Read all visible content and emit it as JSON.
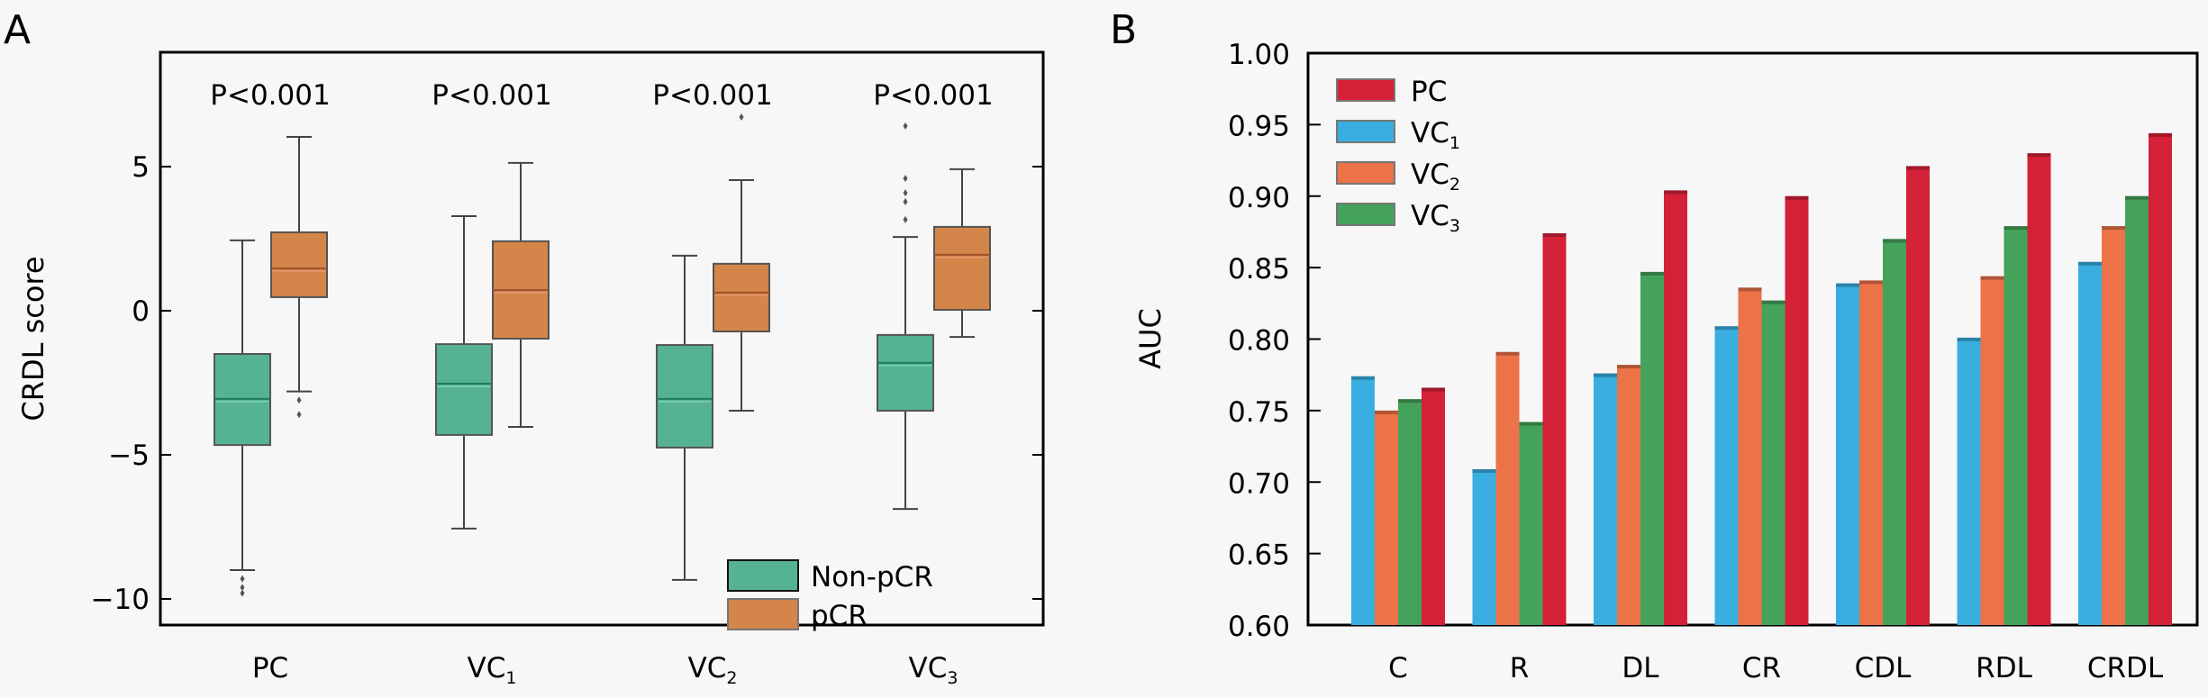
{
  "chart_data": [
    {
      "panel_label": "A",
      "type": "box",
      "title": "",
      "xlabel": "",
      "ylabel": "CRDL score",
      "ylim": [
        -11.0,
        9.0
      ],
      "yticks": [
        5,
        0,
        -5,
        -10
      ],
      "ytick_labels": [
        "5",
        "0",
        "−5",
        "−10"
      ],
      "categories": [
        {
          "base": "PC",
          "sub": ""
        },
        {
          "base": "VC",
          "sub": "1"
        },
        {
          "base": "VC",
          "sub": "2"
        },
        {
          "base": "VC",
          "sub": "3"
        }
      ],
      "p_values": [
        "P<0.001",
        "P<0.001",
        "P<0.001",
        "P<0.001"
      ],
      "legend": {
        "position": "lower-right",
        "entries": [
          "Non-pCR",
          "pCR"
        ]
      },
      "series": [
        {
          "name": "Non-pCR",
          "color": "#55b394",
          "boxes": [
            {
              "whisker_low": -9.0,
              "q1": -4.66,
              "median": -3.06,
              "q3": -1.5,
              "whisker_high": 2.44,
              "outliers": [
                -9.3,
                -9.6,
                -9.8
              ]
            },
            {
              "whisker_low": -7.56,
              "q1": -4.31,
              "median": -2.53,
              "q3": -1.16,
              "whisker_high": 3.28,
              "outliers": []
            },
            {
              "whisker_low": -9.34,
              "q1": -4.75,
              "median": -3.06,
              "q3": -1.19,
              "whisker_high": 1.91,
              "outliers": []
            },
            {
              "whisker_low": -6.88,
              "q1": -3.47,
              "median": -1.81,
              "q3": -0.84,
              "whisker_high": 2.56,
              "outliers": [
                3.16,
                3.78,
                4.09,
                4.59,
                6.41
              ]
            }
          ]
        },
        {
          "name": "pCR",
          "color": "#d4854a",
          "boxes": [
            {
              "whisker_low": -2.8,
              "q1": 0.47,
              "median": 1.47,
              "q3": 2.72,
              "whisker_high": 6.03,
              "outliers": [
                -3.1,
                -3.6
              ]
            },
            {
              "whisker_low": -4.03,
              "q1": -0.97,
              "median": 0.72,
              "q3": 2.41,
              "whisker_high": 5.13,
              "outliers": []
            },
            {
              "whisker_low": -3.47,
              "q1": -0.72,
              "median": 0.63,
              "q3": 1.63,
              "whisker_high": 4.53,
              "outliers": [
                6.72
              ]
            },
            {
              "whisker_low": -0.91,
              "q1": 0.03,
              "median": 1.94,
              "q3": 2.91,
              "whisker_high": 4.91,
              "outliers": []
            }
          ]
        }
      ]
    },
    {
      "panel_label": "B",
      "type": "bar",
      "title": "",
      "xlabel": "",
      "ylabel": "AUC",
      "ylim": [
        0.6,
        1.0
      ],
      "yticks": [
        0.6,
        0.65,
        0.7,
        0.75,
        0.8,
        0.85,
        0.9,
        0.95,
        1.0
      ],
      "ytick_labels": [
        "0.60",
        "0.65",
        "0.70",
        "0.75",
        "0.80",
        "0.85",
        "0.90",
        "0.95",
        "1.00"
      ],
      "categories": [
        "C",
        "R",
        "DL",
        "CR",
        "CDL",
        "RDL",
        "CRDL"
      ],
      "legend": {
        "position": "top-left",
        "order": [
          "PC",
          "VC1",
          "VC2",
          "VC3"
        ]
      },
      "series": [
        {
          "name": "VC1",
          "label_base": "VC",
          "label_sub": "1",
          "color": "#3aaee0",
          "values": [
            0.774,
            0.709,
            0.776,
            0.809,
            0.839,
            0.801,
            0.854
          ]
        },
        {
          "name": "VC2",
          "label_base": "VC",
          "label_sub": "2",
          "color": "#ec7248",
          "values": [
            0.75,
            0.791,
            0.782,
            0.836,
            0.841,
            0.844,
            0.879
          ]
        },
        {
          "name": "VC3",
          "label_base": "VC",
          "label_sub": "3",
          "color": "#44a25a",
          "values": [
            0.758,
            0.742,
            0.847,
            0.827,
            0.87,
            0.879,
            0.9
          ]
        },
        {
          "name": "PC",
          "label_base": "PC",
          "label_sub": "",
          "color": "#d42138",
          "values": [
            0.766,
            0.874,
            0.904,
            0.9,
            0.921,
            0.93,
            0.944
          ]
        }
      ]
    }
  ]
}
